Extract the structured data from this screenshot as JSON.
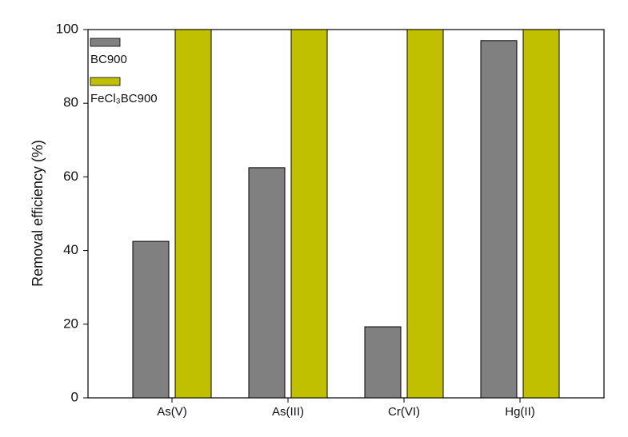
{
  "chart_data": {
    "type": "bar",
    "y_label": "Removal efficiency (%)",
    "categories": [
      "As(V)",
      "As(III)",
      "Cr(VI)",
      "Hg(II)"
    ],
    "series": [
      {
        "name": "BC900",
        "color": "#808080",
        "values": [
          42.5,
          62.5,
          19.3,
          97
        ]
      },
      {
        "name": "FeCl₃BC900",
        "color": "#c0c000",
        "values": [
          100,
          100,
          100,
          100
        ]
      }
    ],
    "ylim": [
      0,
      100
    ],
    "yticks": [
      0,
      20,
      40,
      60,
      80,
      100
    ],
    "grid": false,
    "legend": "top-left"
  }
}
